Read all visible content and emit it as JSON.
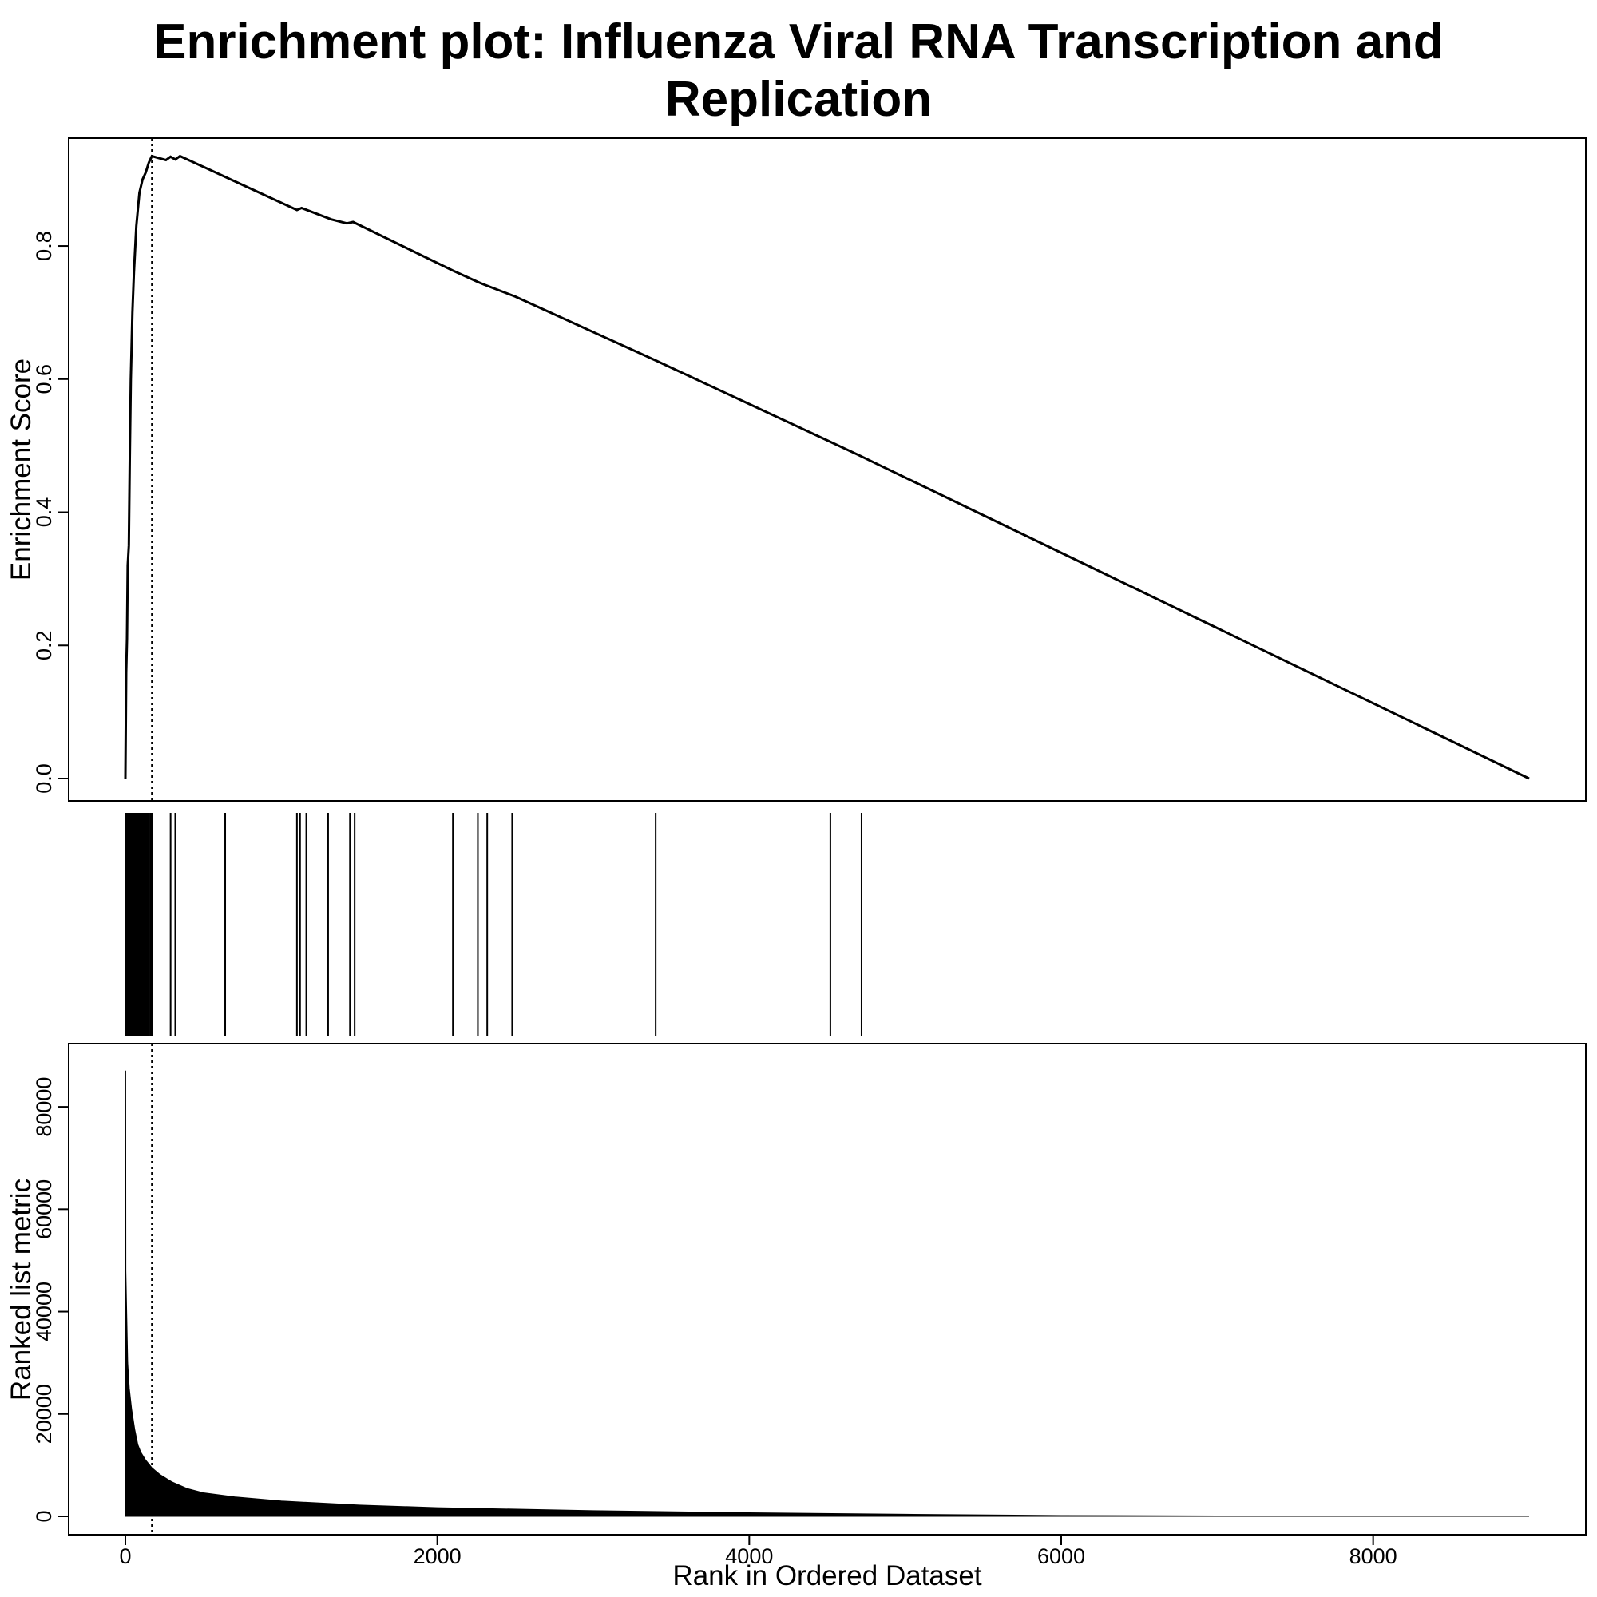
{
  "chart_data": {
    "type": "line",
    "title_line1": "Enrichment plot: Influenza Viral RNA Transcription and",
    "title_line2": "Replication",
    "xlabel": "Rank in Ordered Dataset",
    "xlim": [
      0,
      9000
    ],
    "x_ticks": [
      "0",
      "2000",
      "4000",
      "6000",
      "8000"
    ],
    "x_tick_values": [
      0,
      2000,
      4000,
      6000,
      8000
    ],
    "leading_edge_rank": 170,
    "grid": false,
    "legend": "none",
    "enrichment_panel": {
      "ylabel": "Enrichment Score",
      "ylim": [
        0,
        0.95
      ],
      "y_ticks": [
        "0.0",
        "0.2",
        "0.4",
        "0.6",
        "0.8"
      ],
      "y_tick_values": [
        0,
        0.2,
        0.4,
        0.6,
        0.8
      ],
      "points": [
        [
          0,
          0.0
        ],
        [
          5,
          0.16
        ],
        [
          10,
          0.21
        ],
        [
          15,
          0.32
        ],
        [
          22,
          0.35
        ],
        [
          28,
          0.48
        ],
        [
          35,
          0.6
        ],
        [
          45,
          0.7
        ],
        [
          55,
          0.76
        ],
        [
          70,
          0.83
        ],
        [
          90,
          0.88
        ],
        [
          110,
          0.9
        ],
        [
          130,
          0.91
        ],
        [
          150,
          0.925
        ],
        [
          170,
          0.935
        ],
        [
          260,
          0.929
        ],
        [
          290,
          0.934
        ],
        [
          320,
          0.93
        ],
        [
          350,
          0.935
        ],
        [
          620,
          0.906
        ],
        [
          1100,
          0.854
        ],
        [
          1130,
          0.857
        ],
        [
          1320,
          0.84
        ],
        [
          1420,
          0.834
        ],
        [
          1460,
          0.836
        ],
        [
          2100,
          0.763
        ],
        [
          2260,
          0.746
        ],
        [
          2300,
          0.742
        ],
        [
          2500,
          0.724
        ],
        [
          3400,
          0.628
        ],
        [
          4500,
          0.508
        ],
        [
          4700,
          0.486
        ],
        [
          9000,
          0.0
        ]
      ]
    },
    "hits_panel": {
      "ranks": [
        3,
        6,
        9,
        12,
        15,
        19,
        22,
        25,
        28,
        31,
        35,
        38,
        42,
        46,
        50,
        54,
        58,
        62,
        67,
        72,
        77,
        82,
        88,
        94,
        100,
        107,
        114,
        121,
        129,
        137,
        145,
        153,
        162,
        170,
        290,
        320,
        640,
        1100,
        1120,
        1160,
        1300,
        1440,
        1470,
        2100,
        2260,
        2320,
        2480,
        3400,
        4520,
        4720
      ]
    },
    "metric_panel": {
      "ylabel": "Ranked list metric",
      "ylim": [
        0,
        90000
      ],
      "y_ticks": [
        "0",
        "20000",
        "40000",
        "60000",
        "80000"
      ],
      "y_tick_values": [
        0,
        20000,
        40000,
        60000,
        80000
      ],
      "points": [
        [
          0,
          87000
        ],
        [
          2,
          87000
        ],
        [
          3,
          48000
        ],
        [
          8,
          40000
        ],
        [
          15,
          30000
        ],
        [
          25,
          25000
        ],
        [
          40,
          21000
        ],
        [
          60,
          17000
        ],
        [
          80,
          14000
        ],
        [
          100,
          12500
        ],
        [
          130,
          11000
        ],
        [
          170,
          9500
        ],
        [
          220,
          8200
        ],
        [
          300,
          6700
        ],
        [
          400,
          5400
        ],
        [
          500,
          4600
        ],
        [
          700,
          3800
        ],
        [
          1000,
          3000
        ],
        [
          1500,
          2200
        ],
        [
          2000,
          1700
        ],
        [
          3000,
          1100
        ],
        [
          4000,
          700
        ],
        [
          5000,
          400
        ],
        [
          6000,
          150
        ],
        [
          7000,
          80
        ],
        [
          8000,
          40
        ],
        [
          9000,
          0
        ]
      ]
    }
  }
}
